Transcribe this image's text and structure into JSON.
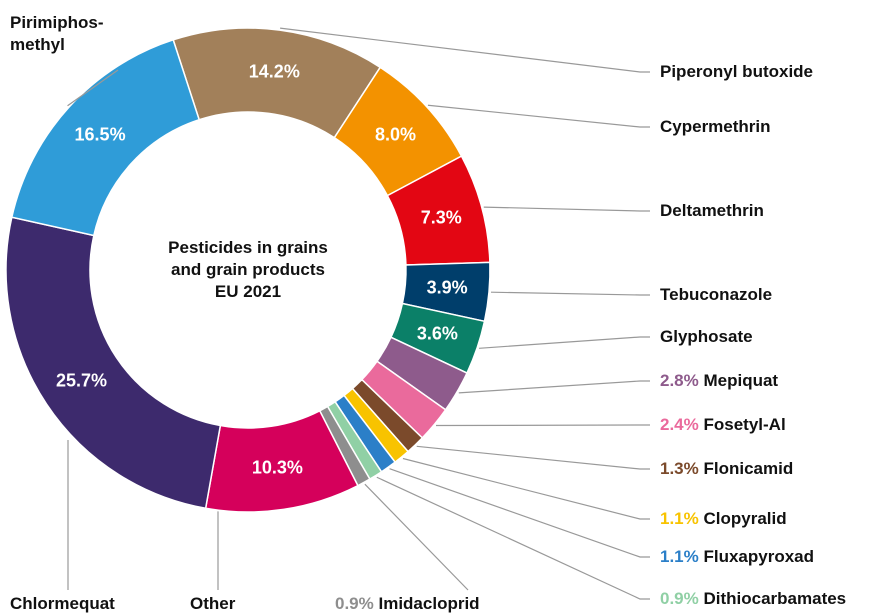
{
  "chart_data": {
    "type": "donut",
    "title": "Pesticides in grains and grain products EU 2021",
    "categories": [
      "Piperonyl butoxide",
      "Cypermethrin",
      "Deltamethrin",
      "Tebuconazole",
      "Glyphosate",
      "Mepiquat",
      "Fosetyl-Al",
      "Flonicamid",
      "Clopyralid",
      "Fluxapyroxad",
      "Dithiocarbamates",
      "Imidacloprid",
      "Other",
      "Chlormequat",
      "Pirimiphos-methyl"
    ],
    "values": [
      14.2,
      8.0,
      7.3,
      3.9,
      3.6,
      2.8,
      2.4,
      1.3,
      1.1,
      1.1,
      0.9,
      0.9,
      10.3,
      25.7,
      16.5
    ],
    "value_labels": [
      "14.2%",
      "8.0%",
      "7.3%",
      "3.9%",
      "3.6%",
      "2.8%",
      "2.4%",
      "1.3%",
      "1.1%",
      "1.1%",
      "0.9%",
      "0.9%",
      "10.3%",
      "25.7%",
      "16.5%"
    ],
    "colors": [
      "#a2805a",
      "#f39200",
      "#e30613",
      "#003e6b",
      "#0b8068",
      "#8e5b8c",
      "#ea6a9c",
      "#7b4a2b",
      "#f8c300",
      "#2b7fc8",
      "#90d0a5",
      "#8e8e8e",
      "#d5005b",
      "#3d2a6d",
      "#2f9cd8"
    ]
  }
}
